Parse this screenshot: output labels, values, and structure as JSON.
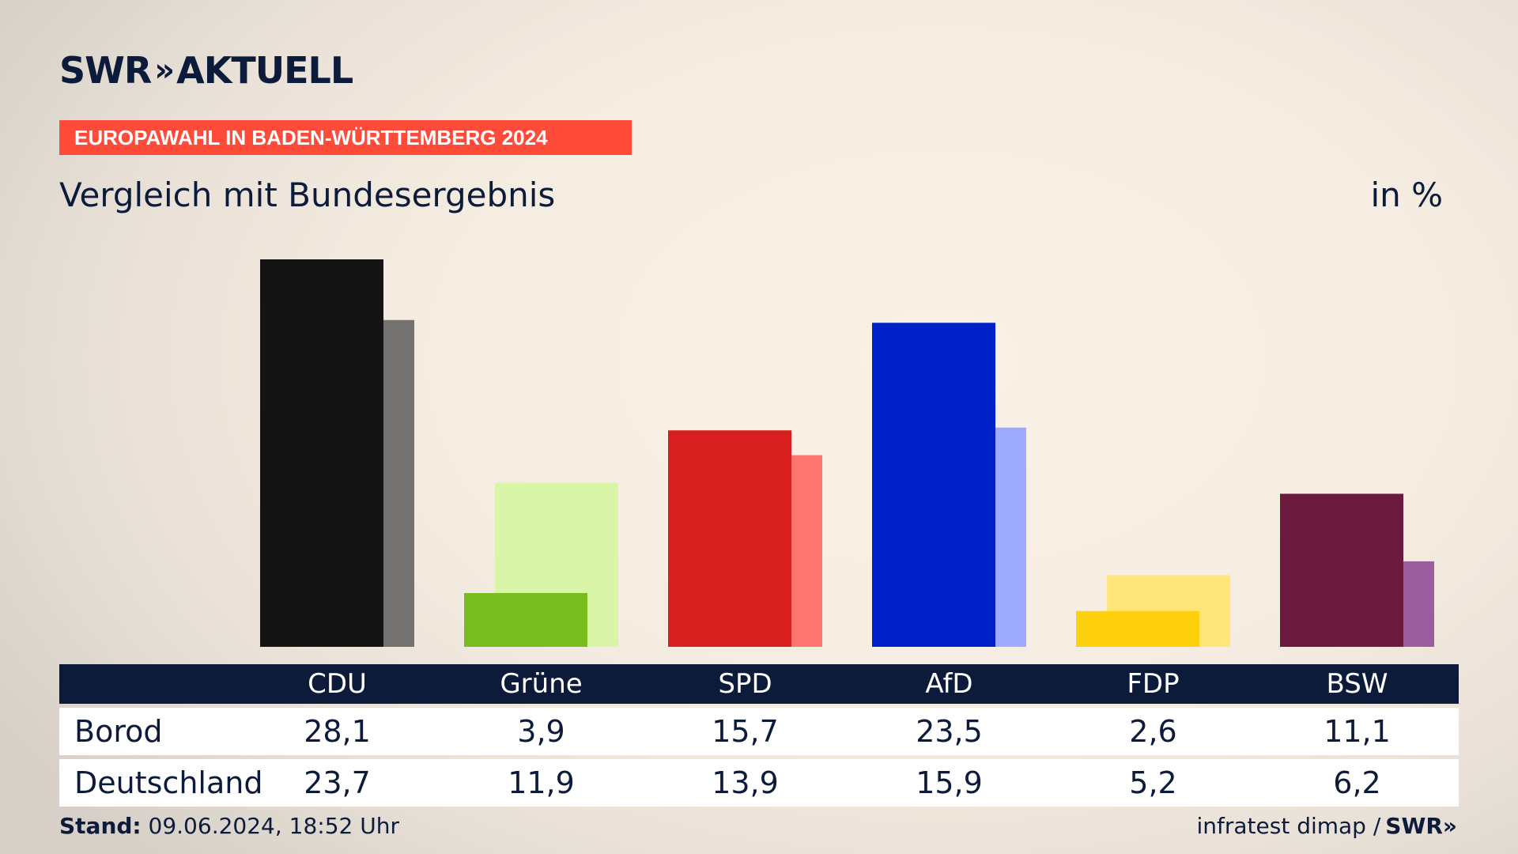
{
  "header": {
    "logo_text": "SWR",
    "logo_chevrons": "»",
    "logo_suffix": "AKTUELL",
    "banner": "EUROPAWAHL IN BADEN-WÜRTTEMBERG 2024",
    "subtitle": "Vergleich mit Bundesergebnis",
    "unit": "in %"
  },
  "chart_data": {
    "type": "bar",
    "title": "Vergleich mit Bundesergebnis",
    "categories": [
      "CDU",
      "Grüne",
      "SPD",
      "AfD",
      "FDP",
      "BSW"
    ],
    "series": [
      {
        "name": "Borod",
        "values": [
          28.1,
          3.9,
          15.7,
          23.5,
          2.6,
          11.1
        ]
      },
      {
        "name": "Deutschland",
        "values": [
          23.7,
          11.9,
          13.9,
          15.9,
          5.2,
          6.2
        ]
      }
    ],
    "colors_primary": [
      "#141414",
      "#78bd1d",
      "#d81f20",
      "#0020c8",
      "#ffd00d",
      "#6b1a3e"
    ],
    "colors_secondary": [
      "#737271",
      "#d8f5a8",
      "#ff7570",
      "#9eaaff",
      "#ffe57a",
      "#9b5d9c"
    ],
    "ylim": [
      0,
      28.1
    ],
    "grid": false,
    "legend": "table-below"
  },
  "table": {
    "rows": [
      {
        "label": "Borod",
        "values": [
          "28,1",
          "3,9",
          "15,7",
          "23,5",
          "2,6",
          "11,1"
        ]
      },
      {
        "label": "Deutschland",
        "values": [
          "23,7",
          "11,9",
          "13,9",
          "15,9",
          "5,2",
          "6,2"
        ]
      }
    ]
  },
  "footer": {
    "stand_label": "Stand:",
    "stand_value": "09.06.2024, 18:52 Uhr",
    "source": "infratest dimap /",
    "source_logo": "SWR»"
  }
}
